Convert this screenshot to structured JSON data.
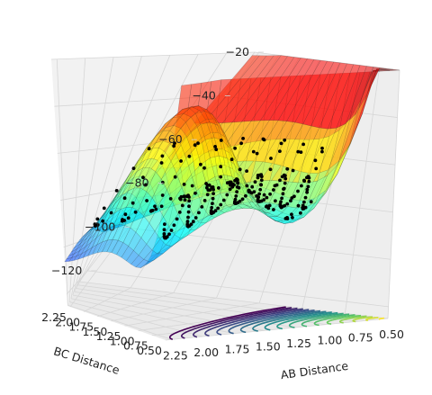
{
  "chart_data": {
    "type": "surface3d",
    "title": "",
    "xlabel": "AB Distance",
    "ylabel": "BC Distance",
    "zlabel": "",
    "x_ticks": [
      "0.50",
      "0.75",
      "1.00",
      "1.25",
      "1.50",
      "1.75",
      "2.00",
      "2.25"
    ],
    "y_ticks": [
      "0.50",
      "0.75",
      "1.00",
      "1.25",
      "1.50",
      "1.75",
      "2.00",
      "2.25"
    ],
    "z_ticks": [
      "−120",
      "−100",
      "−80",
      "−60",
      "−40",
      "−20"
    ],
    "xlim": [
      0.5,
      2.3
    ],
    "ylim": [
      0.5,
      2.3
    ],
    "zlim": [
      -125,
      -20
    ],
    "surface_colormap": "jet",
    "contour_colormap": "viridis",
    "trajectory_color": "#000000",
    "view": {
      "elevation_deg": 8,
      "azimuth_deg": 40
    }
  }
}
